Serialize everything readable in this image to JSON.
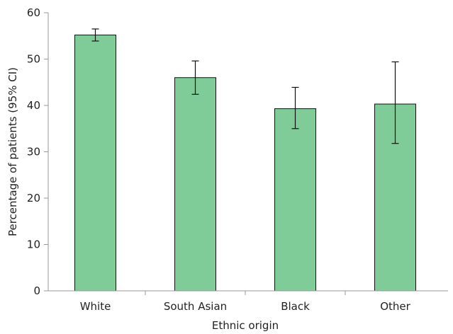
{
  "chart_data": {
    "type": "bar",
    "categories": [
      "White",
      "South Asian",
      "Black",
      "Other"
    ],
    "values": [
      55.2,
      46.0,
      39.3,
      40.3
    ],
    "error_low": [
      53.9,
      42.4,
      35.0,
      31.8
    ],
    "error_high": [
      56.5,
      49.6,
      43.9,
      49.4
    ],
    "xlabel": "Ethnic origin",
    "ylabel": "Percentage of patients (95% CI)",
    "ylim": [
      0,
      60
    ],
    "yticks": [
      0,
      10,
      20,
      30,
      40,
      50,
      60
    ],
    "grid": false,
    "colors": {
      "bar": "#80cc98",
      "bar_stroke": "#111111",
      "axis": "#999999",
      "error_bar": "#111111"
    }
  }
}
